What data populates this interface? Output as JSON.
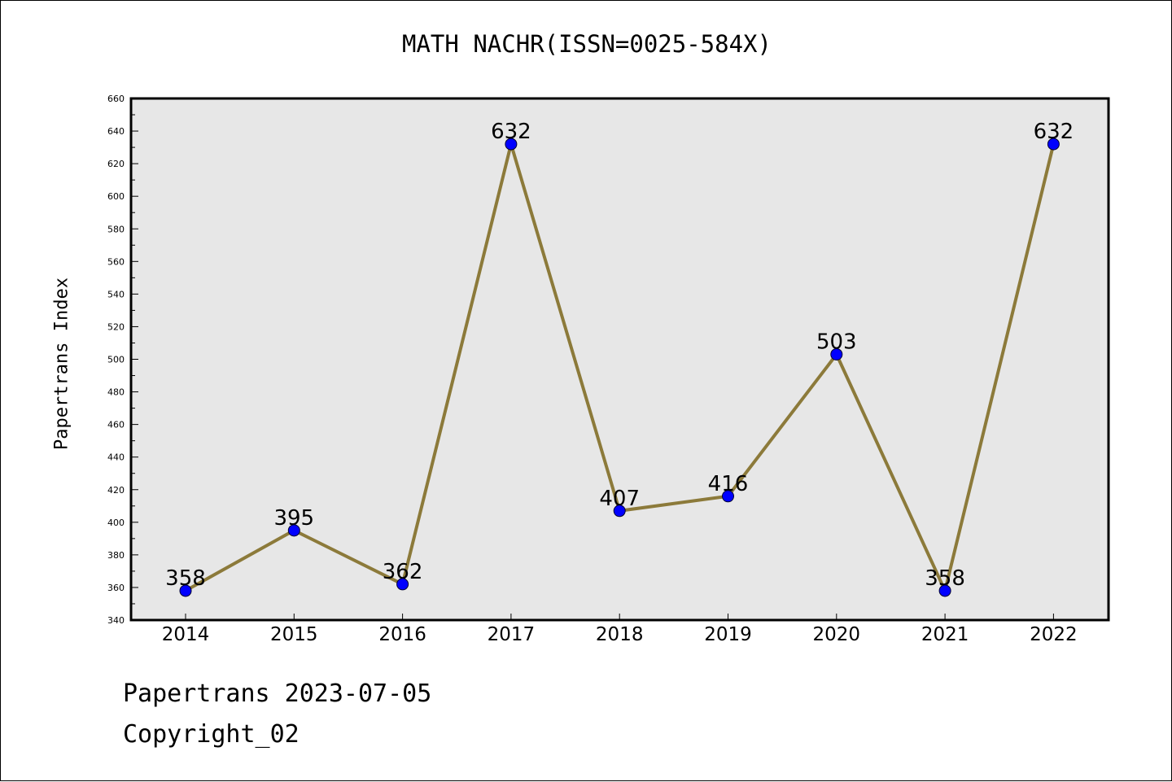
{
  "title": "MATH NACHR(ISSN=0025-584X)",
  "footer": {
    "date_line": "Papertrans 2023-07-05",
    "copyright": "Copyright_02"
  },
  "colors": {
    "line": "#8c7a3a",
    "marker": "#0000ff",
    "plot_background": "#e7e7e7"
  },
  "chart_data": {
    "type": "line",
    "title": "MATH NACHR(ISSN=0025-584X)",
    "xlabel": "",
    "ylabel": "Papertrans Index",
    "categories": [
      "2014",
      "2015",
      "2016",
      "2017",
      "2018",
      "2019",
      "2020",
      "2021",
      "2022"
    ],
    "series": [
      {
        "values": [
          358,
          395,
          362,
          632,
          407,
          416,
          503,
          358,
          632
        ]
      }
    ],
    "data_labels": [
      "358",
      "395",
      "362",
      "632",
      "407",
      "416",
      "503",
      "358",
      "632"
    ],
    "ylim": [
      340,
      660
    ],
    "yticks": [
      340,
      360,
      380,
      400,
      420,
      440,
      460,
      480,
      500,
      520,
      540,
      560,
      580,
      600,
      620,
      640,
      660
    ],
    "grid": false,
    "legend": "none"
  }
}
